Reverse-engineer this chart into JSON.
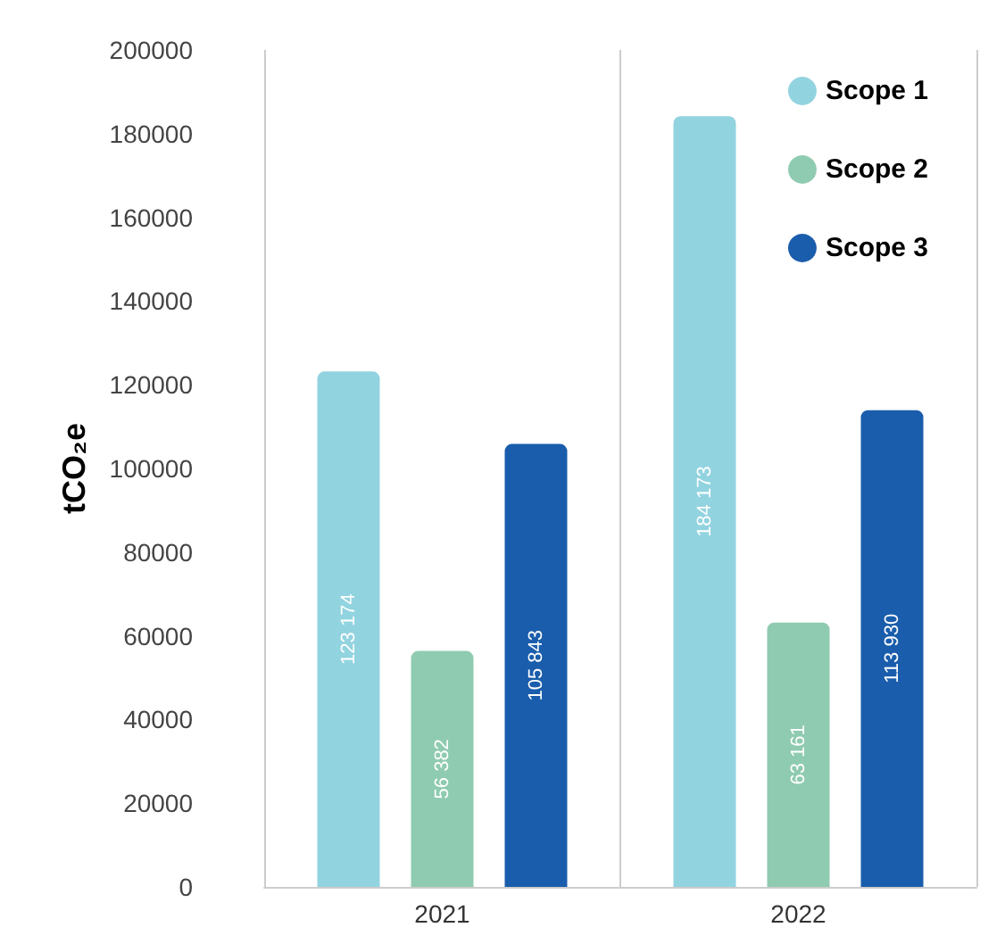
{
  "chart_data": {
    "type": "bar",
    "ylabel": "tCO₂e",
    "categories": [
      "2021",
      "2022"
    ],
    "series": [
      {
        "name": "Scope 1",
        "color": "#92d3e0",
        "values": [
          123174,
          184173
        ],
        "value_labels": [
          "123 174",
          "184 173"
        ]
      },
      {
        "name": "Scope 2",
        "color": "#8fcbb0",
        "values": [
          56382,
          63161
        ],
        "value_labels": [
          "56 382",
          "63 161"
        ]
      },
      {
        "name": "Scope 3",
        "color": "#1a5dac",
        "values": [
          105843,
          113930
        ],
        "value_labels": [
          "105 843",
          "113 930"
        ]
      }
    ],
    "ylim": [
      0,
      200000
    ],
    "yticks": [
      0,
      20000,
      40000,
      60000,
      80000,
      100000,
      120000,
      140000,
      160000,
      180000,
      200000
    ],
    "grid": "x",
    "legend": "top right",
    "marker": "circle"
  }
}
